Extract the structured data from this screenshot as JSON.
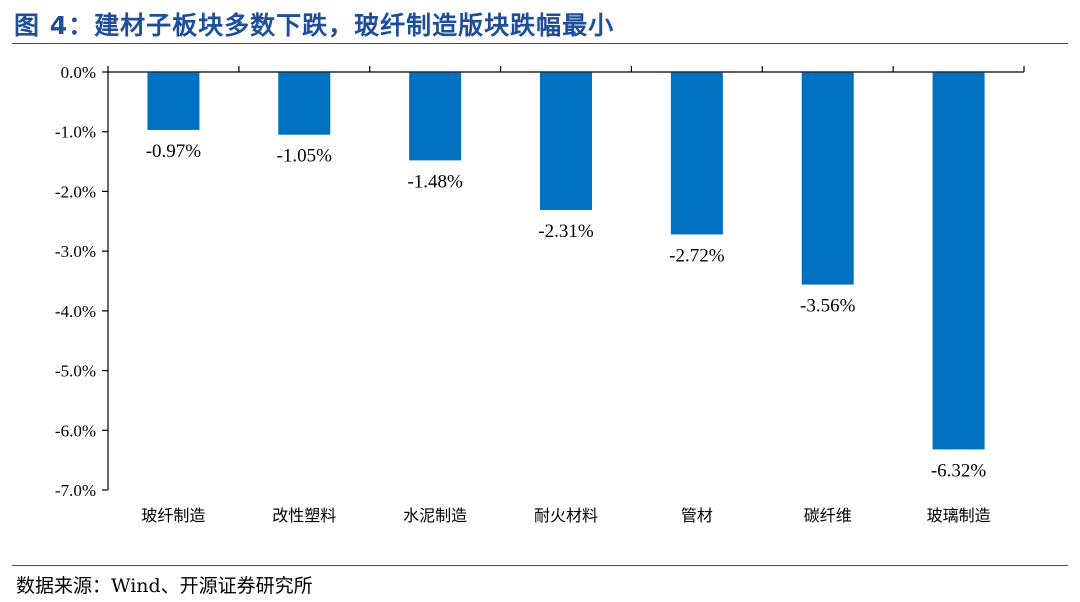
{
  "figure": {
    "title": "图 4：建材子板块多数下跌，玻纤制造版块跌幅最小",
    "source": "数据来源：Wind、开源证券研究所"
  },
  "colors": {
    "bar": "#0070c0",
    "title": "#1f4e9a",
    "axis": "#000000"
  },
  "chart_data": {
    "type": "bar",
    "categories": [
      "玻纤制造",
      "改性塑料",
      "水泥制造",
      "耐火材料",
      "管材",
      "碳纤维",
      "玻璃制造"
    ],
    "values": [
      -0.97,
      -1.05,
      -1.48,
      -2.31,
      -2.72,
      -3.56,
      -6.32
    ],
    "data_labels": [
      "-0.97%",
      "-1.05%",
      "-1.48%",
      "-2.31%",
      "-2.72%",
      "-3.56%",
      "-6.32%"
    ],
    "y_ticks": [
      0,
      -1,
      -2,
      -3,
      -4,
      -5,
      -6,
      -7
    ],
    "y_tick_labels": [
      "0.0%",
      "-1.0%",
      "-2.0%",
      "-3.0%",
      "-4.0%",
      "-5.0%",
      "-6.0%",
      "-7.0%"
    ],
    "ylim": [
      -7,
      0
    ],
    "xlabel": "",
    "ylabel": "",
    "grid": false,
    "legend": "none"
  }
}
